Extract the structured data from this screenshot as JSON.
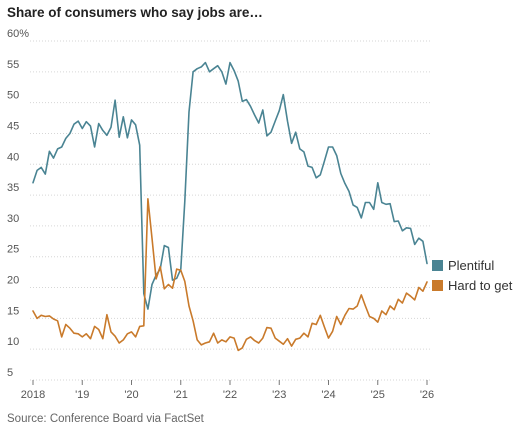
{
  "title": "Share of consumers who say jobs are…",
  "source": "Source: Conference Board via FactSet",
  "chart_data": {
    "type": "line",
    "title": "Share of consumers who say jobs are…",
    "xlabel": "",
    "ylabel": "",
    "ylim": [
      5,
      60
    ],
    "yticks": [
      5,
      10,
      15,
      20,
      25,
      30,
      35,
      40,
      45,
      50,
      55,
      60
    ],
    "ytick_labels": [
      "5",
      "10",
      "15",
      "20",
      "25",
      "30",
      "35",
      "40",
      "45",
      "50",
      "55",
      "60%"
    ],
    "xlim": [
      2018.0,
      2026.0
    ],
    "xticks": [
      2018,
      2019,
      2020,
      2021,
      2022,
      2023,
      2024,
      2025,
      2026
    ],
    "xtick_labels": [
      "2018",
      "'19",
      "'20",
      "'21",
      "'22",
      "'23",
      "'24",
      "'25",
      "'26"
    ],
    "grid": true,
    "legend_position": "right, at line ends",
    "series": [
      {
        "name": "Plentiful",
        "color": "#4a8493",
        "x": [
          2018.0,
          2018.083,
          2018.167,
          2018.25,
          2018.333,
          2018.417,
          2018.5,
          2018.583,
          2018.667,
          2018.75,
          2018.833,
          2018.917,
          2019.0,
          2019.083,
          2019.167,
          2019.25,
          2019.333,
          2019.417,
          2019.5,
          2019.583,
          2019.667,
          2019.75,
          2019.833,
          2019.917,
          2020.0,
          2020.083,
          2020.167,
          2020.25,
          2020.333,
          2020.417,
          2020.5,
          2020.583,
          2020.667,
          2020.75,
          2020.833,
          2020.917,
          2021.0,
          2021.083,
          2021.167,
          2021.25,
          2021.333,
          2021.417,
          2021.5,
          2021.583,
          2021.667,
          2021.75,
          2021.833,
          2021.917,
          2022.0,
          2022.083,
          2022.167,
          2022.25,
          2022.333,
          2022.417,
          2022.5,
          2022.583,
          2022.667,
          2022.75,
          2022.833,
          2022.917,
          2023.0,
          2023.083,
          2023.167,
          2023.25,
          2023.333,
          2023.417,
          2023.5,
          2023.583,
          2023.667,
          2023.75,
          2023.833,
          2023.917,
          2024.0,
          2024.083,
          2024.167,
          2024.25,
          2024.333,
          2024.417,
          2024.5,
          2024.583,
          2024.667,
          2024.75,
          2024.833,
          2024.917,
          2025.0,
          2025.083,
          2025.167,
          2025.25,
          2025.333,
          2025.417,
          2025.5,
          2025.583,
          2025.667,
          2025.75,
          2025.833,
          2025.917,
          2026.0
        ],
        "values": [
          37.0,
          39.0,
          39.5,
          38.4,
          42.1,
          41.0,
          42.5,
          42.8,
          44.2,
          45.0,
          46.5,
          47.0,
          45.8,
          46.9,
          46.2,
          42.8,
          46.6,
          45.5,
          44.7,
          46.0,
          50.4,
          44.4,
          47.7,
          44.3,
          47.2,
          46.4,
          43.1,
          19.0,
          16.5,
          20.5,
          22.0,
          23.0,
          26.8,
          26.5,
          21.2,
          21.5,
          23.0,
          34.0,
          48.5,
          55.0,
          55.5,
          55.8,
          56.5,
          55.0,
          55.5,
          56.0,
          55.0,
          53.0,
          56.5,
          55.2,
          53.5,
          50.2,
          50.5,
          49.4,
          48.0,
          46.7,
          48.8,
          44.6,
          45.2,
          47.0,
          48.7,
          51.3,
          47.0,
          43.4,
          45.2,
          42.5,
          42.0,
          39.7,
          39.5,
          37.8,
          38.3,
          40.5,
          42.8,
          42.8,
          41.4,
          38.5,
          36.9,
          35.6,
          33.4,
          33.0,
          31.3,
          33.8,
          33.8,
          32.7,
          37.0,
          33.8,
          33.5,
          33.6,
          30.7,
          30.8,
          29.2,
          29.7,
          29.6,
          27.0,
          28.0,
          27.5,
          23.9
        ]
      },
      {
        "name": "Hard to get",
        "color": "#c97a2b",
        "x": [
          2018.0,
          2018.083,
          2018.167,
          2018.25,
          2018.333,
          2018.417,
          2018.5,
          2018.583,
          2018.667,
          2018.75,
          2018.833,
          2018.917,
          2019.0,
          2019.083,
          2019.167,
          2019.25,
          2019.333,
          2019.417,
          2019.5,
          2019.583,
          2019.667,
          2019.75,
          2019.833,
          2019.917,
          2020.0,
          2020.083,
          2020.167,
          2020.25,
          2020.333,
          2020.417,
          2020.5,
          2020.583,
          2020.667,
          2020.75,
          2020.833,
          2020.917,
          2021.0,
          2021.083,
          2021.167,
          2021.25,
          2021.333,
          2021.417,
          2021.5,
          2021.583,
          2021.667,
          2021.75,
          2021.833,
          2021.917,
          2022.0,
          2022.083,
          2022.167,
          2022.25,
          2022.333,
          2022.417,
          2022.5,
          2022.583,
          2022.667,
          2022.75,
          2022.833,
          2022.917,
          2023.0,
          2023.083,
          2023.167,
          2023.25,
          2023.333,
          2023.417,
          2023.5,
          2023.583,
          2023.667,
          2023.75,
          2023.833,
          2023.917,
          2024.0,
          2024.083,
          2024.167,
          2024.25,
          2024.333,
          2024.417,
          2024.5,
          2024.583,
          2024.667,
          2024.75,
          2024.833,
          2024.917,
          2025.0,
          2025.083,
          2025.167,
          2025.25,
          2025.333,
          2025.417,
          2025.5,
          2025.583,
          2025.667,
          2025.75,
          2025.833,
          2025.917,
          2026.0
        ],
        "values": [
          16.2,
          15.0,
          15.5,
          15.3,
          15.4,
          14.9,
          14.6,
          12.0,
          14.0,
          13.4,
          12.6,
          12.5,
          12.0,
          12.5,
          11.7,
          13.7,
          13.2,
          11.7,
          15.6,
          12.8,
          12.1,
          11.0,
          11.5,
          12.5,
          12.8,
          12.0,
          13.7,
          13.8,
          34.4,
          28.0,
          21.4,
          23.4,
          19.8,
          20.5,
          19.9,
          23.0,
          22.8,
          21.0,
          17.0,
          14.6,
          11.5,
          10.7,
          11.0,
          11.2,
          12.6,
          11.0,
          11.5,
          11.2,
          12.0,
          11.8,
          9.8,
          10.2,
          11.6,
          12.0,
          11.4,
          11.0,
          11.8,
          13.5,
          13.4,
          11.8,
          11.3,
          10.8,
          11.7,
          10.5,
          11.6,
          11.8,
          12.6,
          12.0,
          14.2,
          14.0,
          15.5,
          13.6,
          11.8,
          12.9,
          15.3,
          14.0,
          15.5,
          16.6,
          16.5,
          17.0,
          18.8,
          17.0,
          15.3,
          15.0,
          14.4,
          16.2,
          15.6,
          17.0,
          16.4,
          18.1,
          17.5,
          19.1,
          18.6,
          18.0,
          20.0,
          19.4,
          20.9
        ]
      }
    ]
  }
}
